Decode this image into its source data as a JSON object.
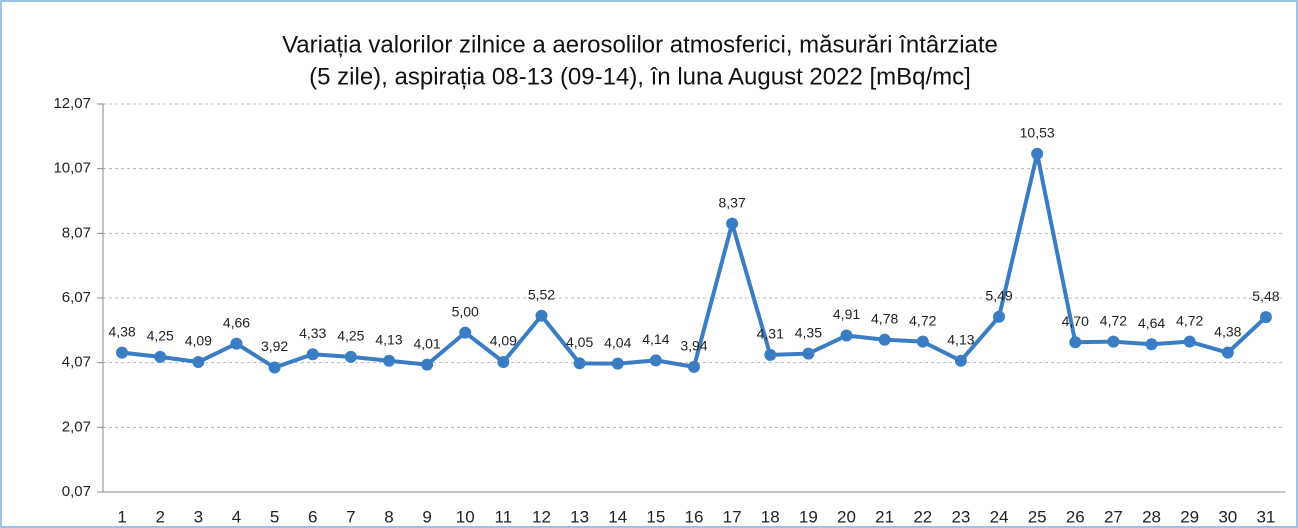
{
  "chart_data": {
    "type": "line",
    "title": [
      "Variația valorilor zilnice a aerosolilor atmosferici, măsurări întârziate",
      "(5 zile), aspirația 08-13 (09-14),  în luna August 2022 [mBq/mc]"
    ],
    "categories": [
      "1",
      "2",
      "3",
      "4",
      "5",
      "6",
      "7",
      "8",
      "9",
      "10",
      "11",
      "12",
      "13",
      "14",
      "15",
      "16",
      "17",
      "18",
      "19",
      "20",
      "21",
      "22",
      "23",
      "24",
      "25",
      "26",
      "27",
      "28",
      "29",
      "30",
      "31"
    ],
    "values": [
      4.38,
      4.25,
      4.09,
      4.66,
      3.92,
      4.33,
      4.25,
      4.13,
      4.01,
      5.0,
      4.09,
      5.52,
      4.05,
      4.04,
      4.14,
      3.94,
      8.37,
      4.31,
      4.35,
      4.91,
      4.78,
      4.72,
      4.13,
      5.49,
      10.53,
      4.7,
      4.72,
      4.64,
      4.72,
      4.38,
      5.48
    ],
    "value_labels": [
      "4,38",
      "4,25",
      "4,09",
      "4,66",
      "3,92",
      "4,33",
      "4,25",
      "4,13",
      "4,01",
      "5,00",
      "4,09",
      "5,52",
      "4,05",
      "4,04",
      "4,14",
      "3,94",
      "8,37",
      "4,31",
      "4,35",
      "4,91",
      "4,78",
      "4,72",
      "4,13",
      "5,49",
      "10,53",
      "4,70",
      "4,72",
      "4,64",
      "4,72",
      "4,38",
      "5,48"
    ],
    "color": "#3b7dc4",
    "ylim": [
      0.07,
      12.07
    ],
    "yticks": [
      {
        "value": 0.07,
        "label": "0,07"
      },
      {
        "value": 2.07,
        "label": "2,07"
      },
      {
        "value": 4.07,
        "label": "4,07"
      },
      {
        "value": 6.07,
        "label": "6,07"
      },
      {
        "value": 8.07,
        "label": "8,07"
      },
      {
        "value": 10.07,
        "label": "10,07"
      },
      {
        "value": 12.07,
        "label": "12,07"
      }
    ],
    "grid": true
  }
}
